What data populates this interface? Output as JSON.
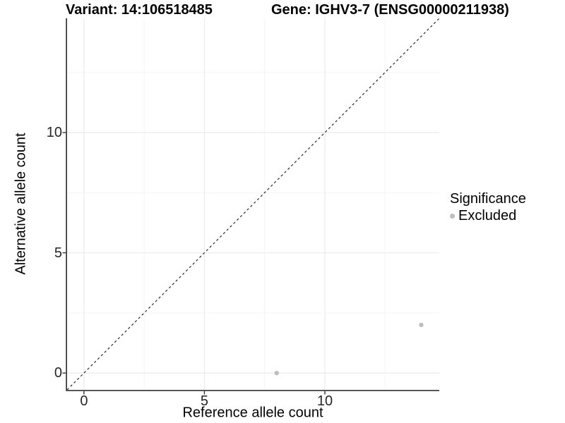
{
  "titles": {
    "left": "Variant: 14:106518485",
    "right": "Gene: IGHV3-7 (ENSG00000211938)"
  },
  "axes": {
    "x": {
      "label": "Reference allele count"
    },
    "y": {
      "label": "Alternative allele count"
    }
  },
  "legend": {
    "title": "Significance",
    "items": [
      {
        "label": "Excluded",
        "color": "#bebebe"
      }
    ]
  },
  "colors": {
    "background": "#ffffff",
    "point": "#bebebe",
    "grid_major": "#ebebeb",
    "grid_minor": "#f5f5f5",
    "axis_line": "#404040",
    "tick_mark": "#333333",
    "reference_line": "#1a1a1a"
  },
  "chart_data": {
    "type": "scatter",
    "title": "Variant: 14:106518485 | Gene: IGHV3-7 (ENSG00000211938)",
    "xlabel": "Reference allele count",
    "ylabel": "Alternative allele count",
    "xlim": [
      -0.7,
      14.75
    ],
    "ylim": [
      -0.7,
      14.75
    ],
    "x_ticks": [
      0,
      5,
      10
    ],
    "y_ticks": [
      0,
      5,
      10
    ],
    "x_minor_ticks": [
      2.5,
      7.5,
      12.5
    ],
    "y_minor_ticks": [
      2.5,
      7.5,
      12.5
    ],
    "grid": true,
    "legend_position": "right",
    "series": [
      {
        "name": "Excluded",
        "color": "#bebebe",
        "points": [
          [
            8,
            0
          ],
          [
            14,
            2
          ]
        ]
      }
    ],
    "reference_line": {
      "style": "dashed",
      "slope": 1,
      "intercept": 0
    }
  }
}
